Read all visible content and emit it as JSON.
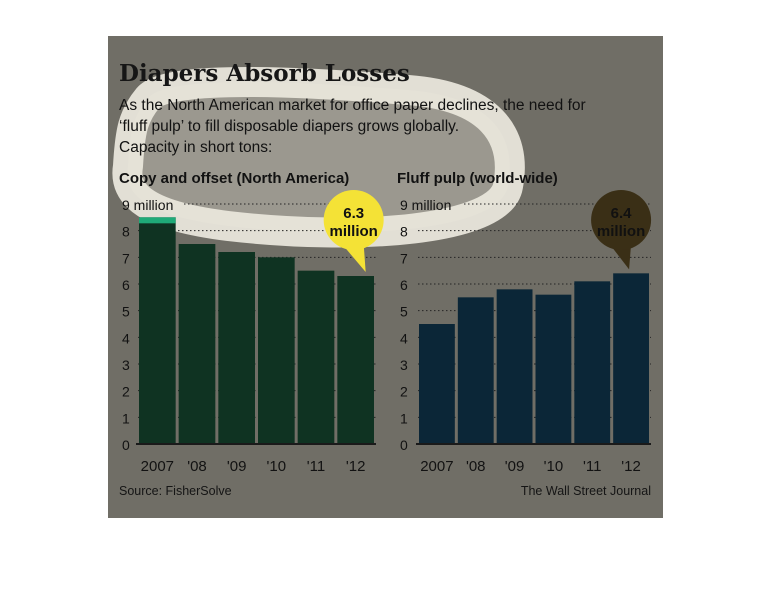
{
  "title": "Diapers Absorb Losses",
  "subtitle_lines": [
    "As the North American market for office paper declines, the need for",
    "‘fluff pulp’ to fill disposable diapers grows globally.",
    "Capacity in short tons:"
  ],
  "source": "Source: FisherSolve",
  "credit": "The Wall Street Journal",
  "colors": {
    "panel": "#706e66",
    "left_bars": "#0f3322",
    "left_highlight": "#1faa78",
    "right_bars": "#0b2637",
    "left_callout": "#f4e236",
    "right_callout": "#3a2f16"
  },
  "chart_data": [
    {
      "type": "bar",
      "title": "Copy and offset (North America)",
      "categories": [
        "2007",
        "'08",
        "'09",
        "'10",
        "'11",
        "'12"
      ],
      "values": [
        8.5,
        7.5,
        7.2,
        7.0,
        6.5,
        6.3
      ],
      "ylim": [
        0,
        9
      ],
      "yticks": [
        "0",
        "1",
        "2",
        "3",
        "4",
        "5",
        "6",
        "7",
        "8",
        "9 million"
      ],
      "grid": true,
      "callout": {
        "category": "'12",
        "line1": "6.3",
        "line2": "million"
      }
    },
    {
      "type": "bar",
      "title": "Fluff pulp (world-wide)",
      "categories": [
        "2007",
        "'08",
        "'09",
        "'10",
        "'11",
        "'12"
      ],
      "values": [
        4.5,
        5.5,
        5.8,
        5.6,
        6.1,
        6.4
      ],
      "ylim": [
        0,
        9
      ],
      "yticks": [
        "0",
        "1",
        "2",
        "3",
        "4",
        "5",
        "6",
        "7",
        "8",
        "9 million"
      ],
      "grid": true,
      "callout": {
        "category": "'12",
        "line1": "6.4",
        "line2": "million"
      }
    }
  ]
}
